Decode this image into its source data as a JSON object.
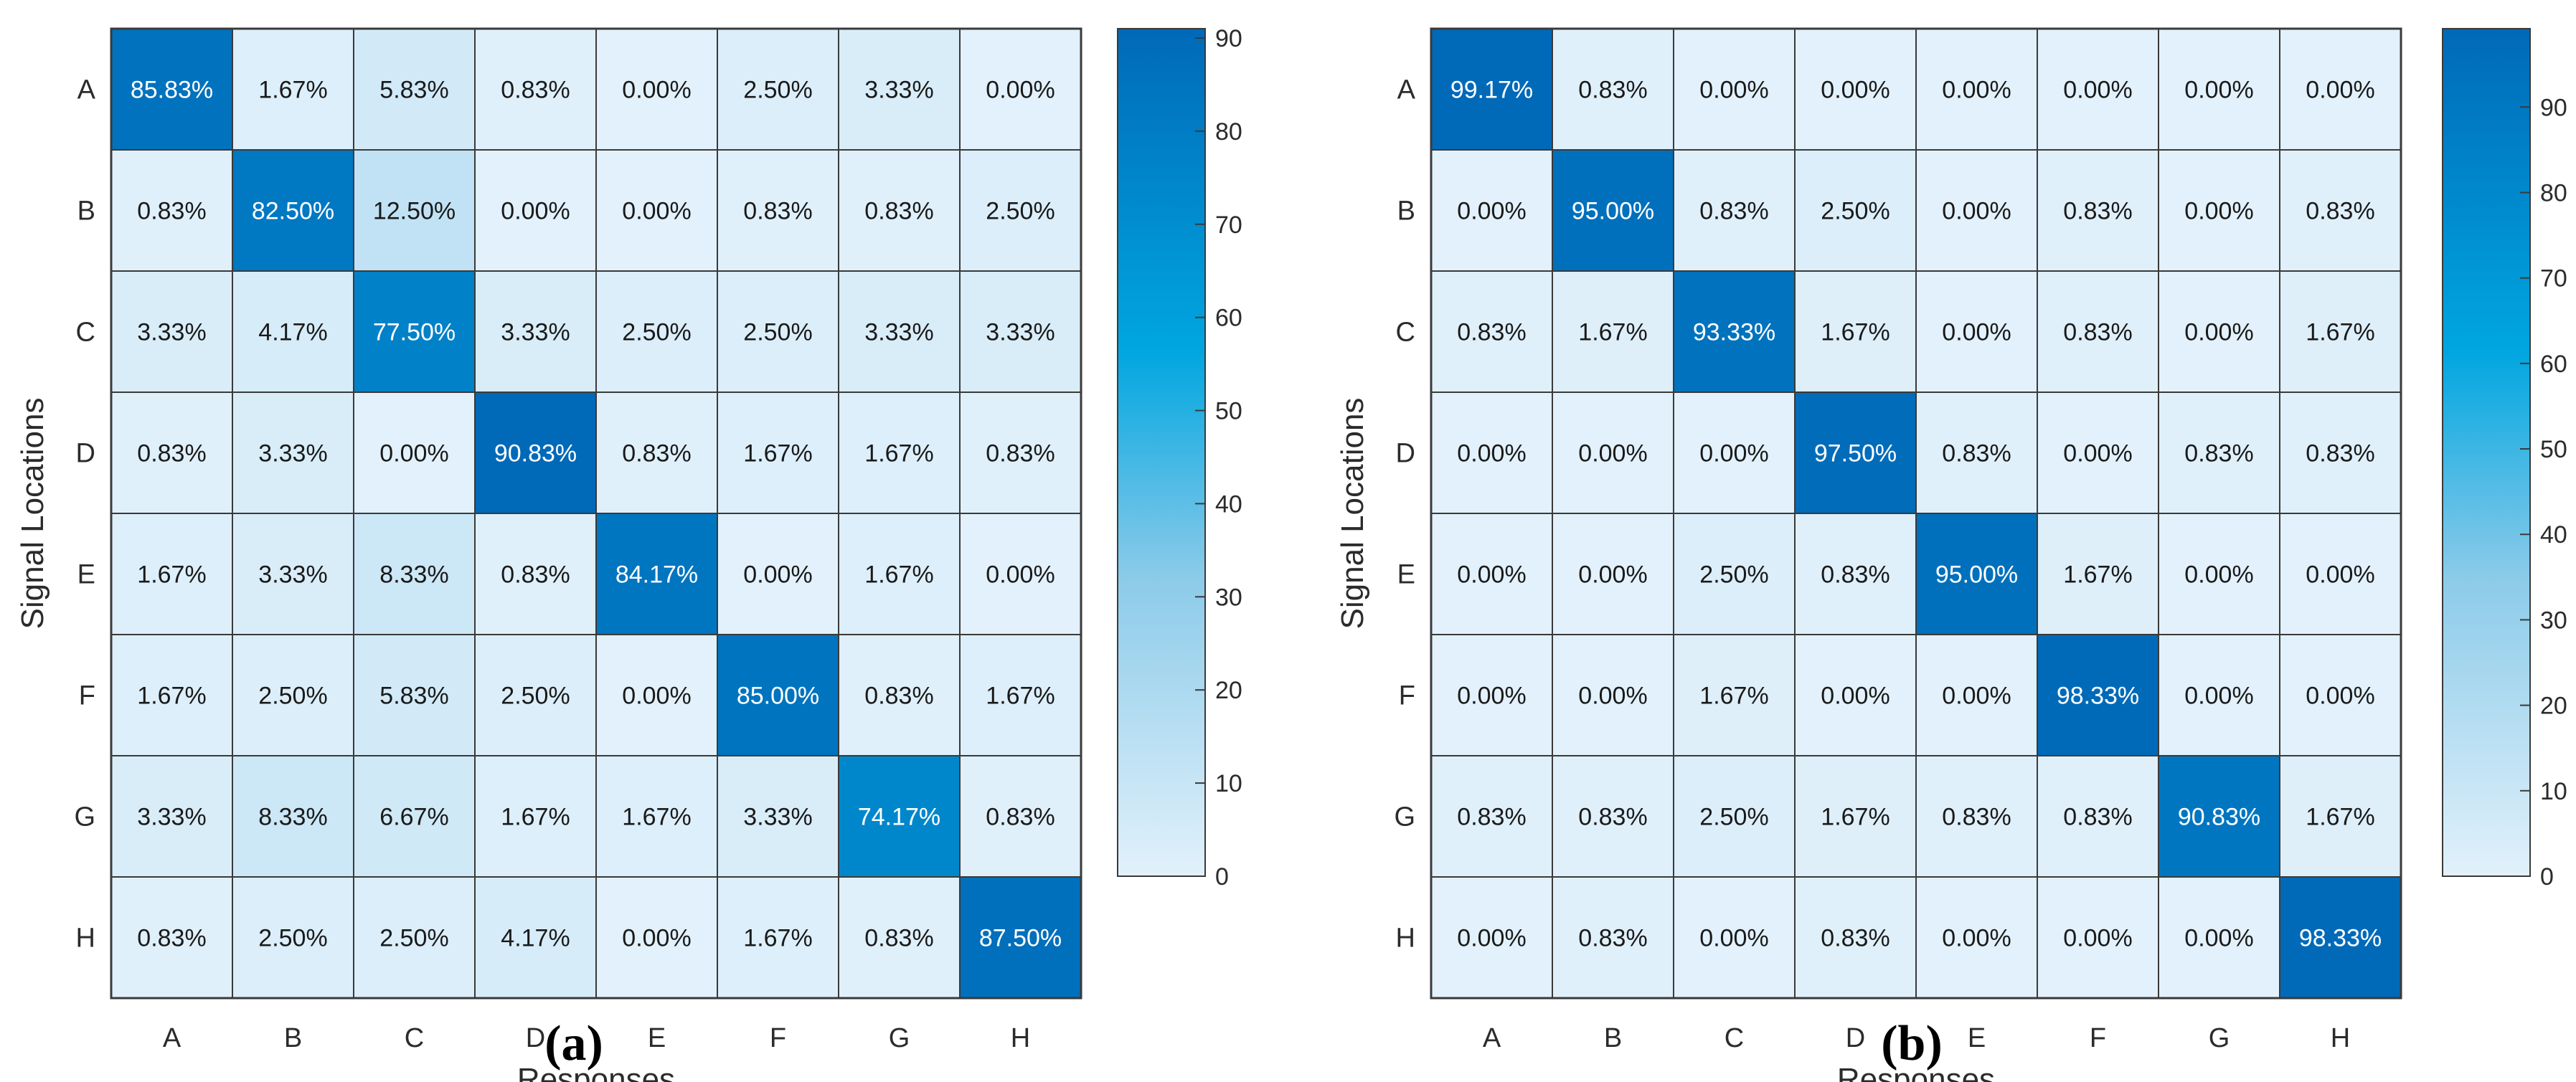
{
  "chart_data": [
    {
      "type": "heatmap",
      "panel_label": "(a)",
      "xlabel": "Responses",
      "ylabel": "Signal Locations",
      "x_categories": [
        "A",
        "B",
        "C",
        "D",
        "E",
        "F",
        "G",
        "H"
      ],
      "y_categories": [
        "A",
        "B",
        "C",
        "D",
        "E",
        "F",
        "G",
        "H"
      ],
      "value_suffix": "%",
      "values": [
        [
          85.83,
          1.67,
          5.83,
          0.83,
          0.0,
          2.5,
          3.33,
          0.0
        ],
        [
          0.83,
          82.5,
          12.5,
          0.0,
          0.0,
          0.83,
          0.83,
          2.5
        ],
        [
          3.33,
          4.17,
          77.5,
          3.33,
          2.5,
          2.5,
          3.33,
          3.33
        ],
        [
          0.83,
          3.33,
          0.0,
          90.83,
          0.83,
          1.67,
          1.67,
          0.83
        ],
        [
          1.67,
          3.33,
          8.33,
          0.83,
          84.17,
          0.0,
          1.67,
          0.0
        ],
        [
          1.67,
          2.5,
          5.83,
          2.5,
          0.0,
          85.0,
          0.83,
          1.67
        ],
        [
          3.33,
          8.33,
          6.67,
          1.67,
          1.67,
          3.33,
          74.17,
          0.83
        ],
        [
          0.83,
          2.5,
          2.5,
          4.17,
          0.0,
          1.67,
          0.83,
          87.5
        ]
      ],
      "colorbar": {
        "range": [
          0,
          91
        ],
        "ticks": [
          0,
          10,
          20,
          30,
          40,
          50,
          60,
          70,
          80,
          90
        ]
      },
      "colors": {
        "low": "#e2f1fb",
        "mid": "#00a6e0",
        "high": "#0069b8"
      }
    },
    {
      "type": "heatmap",
      "panel_label": "(b)",
      "xlabel": "Responses",
      "ylabel": "Signal Locations",
      "x_categories": [
        "A",
        "B",
        "C",
        "D",
        "E",
        "F",
        "G",
        "H"
      ],
      "y_categories": [
        "A",
        "B",
        "C",
        "D",
        "E",
        "F",
        "G",
        "H"
      ],
      "value_suffix": "%",
      "values": [
        [
          99.17,
          0.83,
          0.0,
          0.0,
          0.0,
          0.0,
          0.0,
          0.0
        ],
        [
          0.0,
          95.0,
          0.83,
          2.5,
          0.0,
          0.83,
          0.0,
          0.83
        ],
        [
          0.83,
          1.67,
          93.33,
          1.67,
          0.0,
          0.83,
          0.0,
          1.67
        ],
        [
          0.0,
          0.0,
          0.0,
          97.5,
          0.83,
          0.0,
          0.83,
          0.83
        ],
        [
          0.0,
          0.0,
          2.5,
          0.83,
          95.0,
          1.67,
          0.0,
          0.0
        ],
        [
          0.0,
          0.0,
          1.67,
          0.0,
          0.0,
          98.33,
          0.0,
          0.0
        ],
        [
          0.83,
          0.83,
          2.5,
          1.67,
          0.83,
          0.83,
          90.83,
          1.67
        ],
        [
          0.0,
          0.83,
          0.0,
          0.83,
          0.0,
          0.0,
          0.0,
          98.33
        ]
      ],
      "colorbar": {
        "range": [
          0,
          99.17
        ],
        "ticks": [
          0,
          10,
          20,
          30,
          40,
          50,
          60,
          70,
          80,
          90
        ]
      },
      "colors": {
        "low": "#e2f1fb",
        "mid": "#00a6e0",
        "high": "#0069b8"
      }
    }
  ]
}
